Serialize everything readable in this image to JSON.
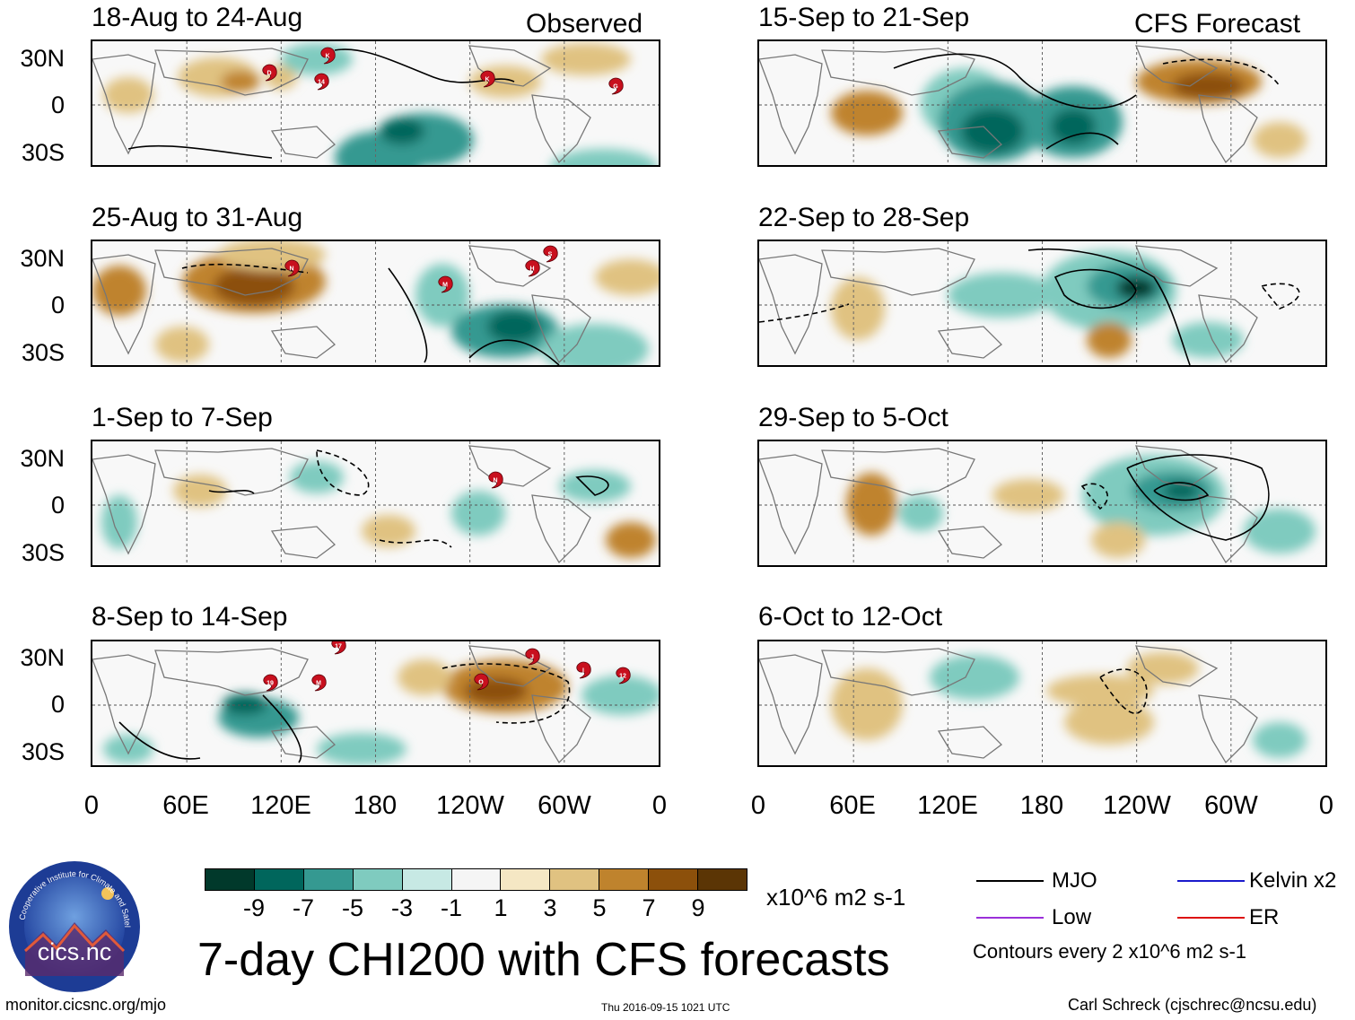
{
  "left_tag": "Observed",
  "right_tag": "CFS Forecast",
  "lat_labels": [
    "30N",
    "0",
    "30S"
  ],
  "lon_labels": [
    "0",
    "60E",
    "120E",
    "180",
    "120W",
    "60W",
    "0"
  ],
  "panels_left": [
    {
      "title": "18-Aug to 24-Aug"
    },
    {
      "title": "25-Aug to 31-Aug"
    },
    {
      "title": "1-Sep to 7-Sep"
    },
    {
      "title": "8-Sep to 14-Sep"
    }
  ],
  "panels_right": [
    {
      "title": "15-Sep to 21-Sep"
    },
    {
      "title": "22-Sep to 28-Sep"
    },
    {
      "title": "29-Sep to 5-Oct"
    },
    {
      "title": "6-Oct to 12-Oct"
    }
  ],
  "storm_markers": {
    "p0": [
      "D",
      "K",
      "14",
      "K",
      "G"
    ],
    "p1": [
      "N",
      "M",
      "H",
      "S"
    ],
    "p2": [
      "N"
    ],
    "p3": [
      "17",
      "19",
      "M",
      "O",
      "J",
      "I",
      "12"
    ]
  },
  "colorbar": {
    "colors": [
      "#01392b",
      "#00665c",
      "#359991",
      "#7fcbbf",
      "#c7e9e4",
      "#f5f5f5",
      "#f5e7c4",
      "#e0c281",
      "#bf832d",
      "#8c500b",
      "#5b3505"
    ],
    "labels": [
      "-9",
      "-7",
      "-5",
      "-3",
      "-1",
      "1",
      "3",
      "5",
      "7",
      "9"
    ],
    "unit": "x10^6 m2 s-1"
  },
  "legend": {
    "mjo": "MJO",
    "kelvin": "Kelvin x2",
    "low": "Low",
    "er": "ER",
    "contours": "Contours every 2 x10^6 m2 s-1",
    "colors": {
      "mjo": "#000000",
      "kelvin": "#1a1acc",
      "low": "#9b30d9",
      "er": "#dd1111"
    }
  },
  "title": "7-day CHI200 with CFS forecasts",
  "logo_text": "cics.nc",
  "logo_ring": "Cooperative Institute for Climate and Satellites",
  "url": "monitor.cicsnc.org/mjo",
  "timestamp": "Thu 2016-09-15 1021 UTC",
  "credit": "Carl Schreck (cjschrec@ncsu.edu)"
}
